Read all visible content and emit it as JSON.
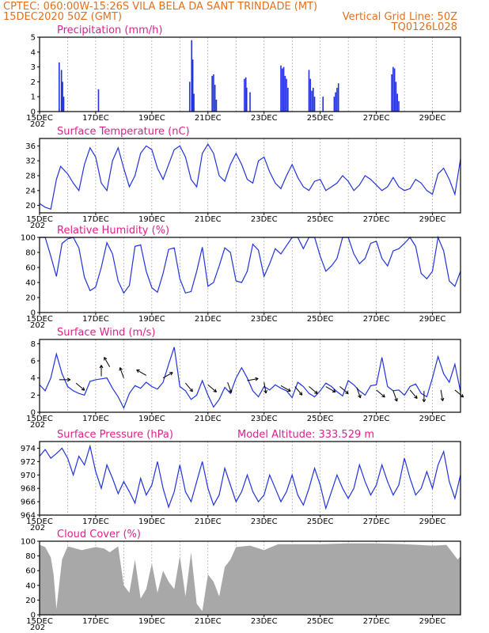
{
  "header": {
    "line1": "CPTEC:   060:00W-15:26S   VILA BELA DA SANT TRINDADE (MT)",
    "line2_left": "15DEC2020 50Z (GMT)",
    "line2_right": "Vertical Grid Line: 50Z",
    "line3_right": "TQ0126L028"
  },
  "x_labels": [
    "15DEC",
    "17DEC",
    "19DEC",
    "21DEC",
    "23DEC",
    "25DEC",
    "27DEC",
    "29DEC"
  ],
  "year_fragment": "202",
  "colors": {
    "line": "#2233dd",
    "bar": "#2233dd",
    "cloud": "#a8a8a8",
    "title": "#e0208a",
    "header": "#e07020"
  },
  "chart_data": [
    {
      "type": "bar",
      "title": "Precipitation (mm/h)",
      "ylim": [
        0,
        5
      ],
      "yticks": [
        "0",
        "1",
        "2",
        "3",
        "4",
        "5"
      ],
      "x_start": "15DEC",
      "x_end": "30DEC",
      "spikes": [
        [
          15.7,
          3.3
        ],
        [
          15.78,
          2.8
        ],
        [
          15.82,
          2.0
        ],
        [
          15.86,
          1.0
        ],
        [
          17.1,
          1.5
        ],
        [
          20.35,
          2.0
        ],
        [
          20.42,
          4.8
        ],
        [
          20.46,
          3.5
        ],
        [
          20.5,
          1.2
        ],
        [
          21.15,
          2.4
        ],
        [
          21.2,
          2.5
        ],
        [
          21.25,
          1.8
        ],
        [
          21.3,
          0.8
        ],
        [
          22.3,
          2.2
        ],
        [
          22.35,
          2.3
        ],
        [
          22.38,
          1.6
        ],
        [
          22.5,
          1.3
        ],
        [
          23.6,
          3.1
        ],
        [
          23.65,
          2.9
        ],
        [
          23.7,
          3.0
        ],
        [
          23.75,
          2.4
        ],
        [
          23.8,
          2.2
        ],
        [
          23.85,
          1.6
        ],
        [
          24.6,
          2.8
        ],
        [
          24.65,
          2.2
        ],
        [
          24.7,
          1.4
        ],
        [
          24.75,
          1.6
        ],
        [
          24.8,
          1.0
        ],
        [
          25.1,
          1.0
        ],
        [
          25.5,
          1.0
        ],
        [
          25.55,
          1.3
        ],
        [
          25.6,
          1.6
        ],
        [
          25.65,
          1.9
        ],
        [
          27.55,
          2.5
        ],
        [
          27.6,
          3.0
        ],
        [
          27.65,
          2.9
        ],
        [
          27.7,
          2.0
        ],
        [
          27.75,
          1.2
        ],
        [
          27.8,
          0.7
        ]
      ]
    },
    {
      "type": "line",
      "title": "Surface Temperature (nC)",
      "ylim": [
        18,
        38
      ],
      "yticks": [
        "20",
        "24",
        "28",
        "32",
        "36"
      ],
      "days": [
        15.0,
        15.2,
        15.4,
        15.6,
        15.75,
        16.0,
        16.2,
        16.4,
        16.6,
        16.8,
        17.0,
        17.2,
        17.4,
        17.6,
        17.8,
        18.0,
        18.2,
        18.4,
        18.6,
        18.8,
        19.0,
        19.2,
        19.4,
        19.6,
        19.8,
        20.0,
        20.2,
        20.4,
        20.6,
        20.8,
        21.0,
        21.2,
        21.4,
        21.6,
        21.8,
        22.0,
        22.2,
        22.4,
        22.6,
        22.8,
        23.0,
        23.2,
        23.4,
        23.6,
        23.8,
        24.0,
        24.2,
        24.4,
        24.6,
        24.8,
        25.0,
        25.2,
        25.4,
        25.6,
        25.8,
        26.0,
        26.2,
        26.4,
        26.6,
        26.8,
        27.0,
        27.2,
        27.4,
        27.6,
        27.8,
        28.0,
        28.2,
        28.4,
        28.6,
        28.8,
        29.0,
        29.2,
        29.4,
        29.6,
        29.8,
        30.0
      ],
      "values": [
        20.5,
        19.5,
        19.0,
        27,
        30.5,
        28.5,
        26,
        24,
        31,
        35.5,
        33,
        26,
        24,
        32,
        35.5,
        30,
        25,
        28,
        34,
        36,
        35,
        30,
        27,
        31,
        35,
        36,
        33,
        27,
        25,
        34,
        36.5,
        34,
        28,
        26.5,
        31,
        34,
        31,
        27,
        26,
        32,
        33,
        29,
        26,
        24.5,
        28,
        31,
        27.5,
        25,
        24,
        26.5,
        27,
        24,
        25,
        26,
        28,
        26.5,
        24,
        25.5,
        28,
        27,
        25.5,
        24,
        25,
        27.5,
        25,
        24,
        24.5,
        27,
        26,
        24,
        23,
        28.5,
        30,
        27,
        23,
        32.5
      ]
    },
    {
      "type": "line",
      "title": "Relative Humidity (%)",
      "ylim": [
        0,
        100
      ],
      "yticks": [
        "0",
        "20",
        "40",
        "60",
        "80",
        "100"
      ],
      "days": [
        15.0,
        15.2,
        15.4,
        15.6,
        15.8,
        16.0,
        16.2,
        16.4,
        16.6,
        16.8,
        17.0,
        17.2,
        17.4,
        17.6,
        17.8,
        18.0,
        18.2,
        18.4,
        18.6,
        18.8,
        19.0,
        19.2,
        19.4,
        19.6,
        19.8,
        20.0,
        20.2,
        20.4,
        20.6,
        20.8,
        21.0,
        21.2,
        21.4,
        21.6,
        21.8,
        22.0,
        22.2,
        22.4,
        22.6,
        22.8,
        23.0,
        23.2,
        23.4,
        23.6,
        23.8,
        24.0,
        24.2,
        24.4,
        24.6,
        24.8,
        25.0,
        25.2,
        25.4,
        25.6,
        25.8,
        26.0,
        26.2,
        26.4,
        26.6,
        26.8,
        27.0,
        27.2,
        27.4,
        27.6,
        27.8,
        28.0,
        28.2,
        28.4,
        28.6,
        28.8,
        29.0,
        29.2,
        29.4,
        29.6,
        29.8,
        30.0
      ],
      "values": [
        100,
        100,
        75,
        48,
        92,
        98,
        100,
        86,
        47,
        29,
        34,
        60,
        93,
        78,
        42,
        26,
        36,
        88,
        90,
        55,
        33,
        27,
        52,
        84,
        86,
        45,
        26,
        28,
        55,
        87,
        35,
        40,
        62,
        86,
        80,
        42,
        40,
        55,
        91,
        83,
        48,
        65,
        85,
        78,
        89,
        100,
        100,
        85,
        100,
        100,
        75,
        55,
        62,
        72,
        100,
        100,
        78,
        65,
        72,
        92,
        95,
        72,
        62,
        82,
        85,
        92,
        100,
        88,
        52,
        45,
        55,
        100,
        82,
        42,
        35,
        55
      ]
    },
    {
      "type": "line",
      "title": "Surface Wind (m/s)",
      "ylim": [
        0,
        8.5
      ],
      "yticks": [
        "0",
        "2",
        "4",
        "6",
        "8"
      ],
      "days": [
        15.0,
        15.2,
        15.4,
        15.6,
        15.8,
        16.0,
        16.2,
        16.4,
        16.6,
        16.8,
        17.0,
        17.2,
        17.4,
        17.6,
        17.8,
        18.0,
        18.2,
        18.4,
        18.6,
        18.8,
        19.0,
        19.2,
        19.4,
        19.6,
        19.8,
        20.0,
        20.2,
        20.4,
        20.6,
        20.8,
        21.0,
        21.2,
        21.4,
        21.6,
        21.8,
        22.0,
        22.2,
        22.4,
        22.6,
        22.8,
        23.0,
        23.2,
        23.4,
        23.6,
        23.8,
        24.0,
        24.2,
        24.4,
        24.6,
        24.8,
        25.0,
        25.2,
        25.4,
        25.6,
        25.8,
        26.0,
        26.2,
        26.4,
        26.6,
        26.8,
        27.0,
        27.2,
        27.4,
        27.6,
        27.8,
        28.0,
        28.2,
        28.4,
        28.6,
        28.8,
        29.0,
        29.2,
        29.4,
        29.6,
        29.8,
        30.0
      ],
      "values": [
        3.2,
        2.5,
        4.0,
        6.8,
        4.5,
        3.0,
        2.5,
        2.2,
        2.0,
        3.6,
        3.8,
        3.9,
        4.0,
        2.8,
        1.8,
        0.5,
        2.2,
        3.1,
        2.8,
        3.5,
        3.0,
        2.7,
        3.5,
        5.6,
        7.6,
        3.0,
        2.5,
        1.5,
        2.0,
        3.7,
        2.0,
        0.6,
        1.5,
        2.9,
        2.2,
        4.0,
        5.2,
        4.0,
        2.5,
        1.8,
        3.0,
        2.6,
        3.2,
        2.8,
        2.5,
        1.7,
        3.5,
        3.0,
        2.2,
        1.8,
        2.5,
        3.4,
        3.0,
        2.4,
        1.9,
        3.7,
        3.2,
        2.5,
        2.0,
        3.1,
        3.2,
        6.4,
        3.0,
        2.5,
        2.6,
        2.0,
        3.0,
        3.3,
        2.2,
        1.8,
        4.0,
        6.5,
        4.5,
        3.5,
        5.6,
        2.4
      ],
      "arrows": [
        [
          15.7,
          3.8,
          90
        ],
        [
          16.3,
          3.4,
          130
        ],
        [
          17.2,
          4.2,
          0
        ],
        [
          17.5,
          5.3,
          -30
        ],
        [
          18.0,
          4.0,
          -20
        ],
        [
          18.8,
          4.3,
          -60
        ],
        [
          19.4,
          4.0,
          60
        ],
        [
          20.2,
          3.4,
          140
        ],
        [
          21.0,
          3.2,
          130
        ],
        [
          21.7,
          3.5,
          160
        ],
        [
          22.4,
          3.7,
          80
        ],
        [
          23.0,
          3.5,
          170
        ],
        [
          23.6,
          3.1,
          120
        ],
        [
          24.1,
          3.0,
          140
        ],
        [
          24.6,
          3.0,
          130
        ],
        [
          25.2,
          3.0,
          120
        ],
        [
          25.7,
          3.0,
          130
        ],
        [
          26.3,
          2.9,
          160
        ],
        [
          27.0,
          2.6,
          130
        ],
        [
          27.6,
          2.5,
          160
        ],
        [
          28.2,
          2.6,
          140
        ],
        [
          28.7,
          2.5,
          180
        ],
        [
          29.3,
          2.6,
          170
        ],
        [
          29.8,
          2.6,
          130
        ]
      ]
    },
    {
      "type": "line",
      "title": "Surface Pressure (hPa)",
      "annotation": "Model Altitude: 333.529 m",
      "ylim": [
        964,
        975
      ],
      "yticks": [
        "964",
        "966",
        "968",
        "970",
        "972",
        "974"
      ],
      "days": [
        15.0,
        15.2,
        15.4,
        15.6,
        15.8,
        16.0,
        16.2,
        16.4,
        16.6,
        16.8,
        17.0,
        17.2,
        17.4,
        17.6,
        17.8,
        18.0,
        18.2,
        18.4,
        18.6,
        18.8,
        19.0,
        19.2,
        19.4,
        19.6,
        19.8,
        20.0,
        20.2,
        20.4,
        20.6,
        20.8,
        21.0,
        21.2,
        21.4,
        21.6,
        21.8,
        22.0,
        22.2,
        22.4,
        22.6,
        22.8,
        23.0,
        23.2,
        23.4,
        23.6,
        23.8,
        24.0,
        24.2,
        24.4,
        24.6,
        24.8,
        25.0,
        25.2,
        25.4,
        25.6,
        25.8,
        26.0,
        26.2,
        26.4,
        26.6,
        26.8,
        27.0,
        27.2,
        27.4,
        27.6,
        27.8,
        28.0,
        28.2,
        28.4,
        28.6,
        28.8,
        29.0,
        29.2,
        29.4,
        29.6,
        29.8,
        30.0
      ],
      "values": [
        972.8,
        973.8,
        972.5,
        973.2,
        974.0,
        972.5,
        970.0,
        972.8,
        971.5,
        974.3,
        970.5,
        968.0,
        971.5,
        969.5,
        967.2,
        969.0,
        967.5,
        965.8,
        969.5,
        967.0,
        968.5,
        972.0,
        968.0,
        965.2,
        967.5,
        971.5,
        967.5,
        966.0,
        969.0,
        972.0,
        968.0,
        965.5,
        967.0,
        971.0,
        968.5,
        966.0,
        967.5,
        970.0,
        967.5,
        966.0,
        967.0,
        970.0,
        968.0,
        966.0,
        967.5,
        970.0,
        967.0,
        965.5,
        968.0,
        971.0,
        968.5,
        965.0,
        967.5,
        970.0,
        968.0,
        966.5,
        968.0,
        971.5,
        969.0,
        967.0,
        968.5,
        971.5,
        969.0,
        967.0,
        968.5,
        972.5,
        969.5,
        967.0,
        968.0,
        970.5,
        968.0,
        971.5,
        973.5,
        969.0,
        966.5,
        970.0
      ]
    },
    {
      "type": "area",
      "title": "Cloud Cover (%)",
      "ylim": [
        0,
        100
      ],
      "yticks": [
        "0",
        "20",
        "40",
        "60",
        "80",
        "100"
      ],
      "days": [
        15.0,
        15.2,
        15.4,
        15.5,
        15.6,
        15.8,
        16.0,
        16.5,
        17.0,
        17.3,
        17.5,
        17.8,
        18.0,
        18.2,
        18.4,
        18.6,
        18.8,
        19.0,
        19.2,
        19.4,
        19.6,
        19.8,
        20.0,
        20.2,
        20.4,
        20.6,
        20.8,
        21.0,
        21.2,
        21.4,
        21.6,
        21.8,
        22.0,
        22.5,
        23.0,
        23.5,
        24.0,
        25.0,
        26.0,
        27.0,
        28.0,
        28.5,
        29.0,
        29.5,
        29.9,
        30.0
      ],
      "values": [
        95,
        92,
        78,
        55,
        8,
        75,
        93,
        88,
        92,
        90,
        85,
        93,
        40,
        30,
        75,
        22,
        35,
        70,
        30,
        60,
        45,
        35,
        80,
        25,
        85,
        15,
        5,
        55,
        45,
        25,
        65,
        75,
        92,
        94,
        88,
        96,
        96,
        96,
        97,
        97,
        96,
        95,
        94,
        95,
        75,
        80
      ]
    }
  ]
}
